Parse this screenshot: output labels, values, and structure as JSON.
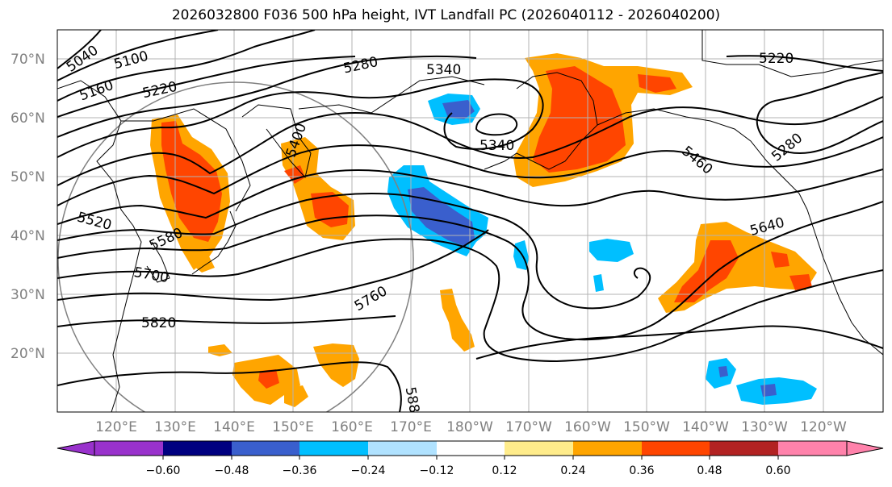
{
  "title": "2026032800 F036 500 hPa height, IVT Landfall PC (2026040112 - 2026040200)",
  "lat_labels": [
    "70°N",
    "60°N",
    "50°N",
    "40°N",
    "30°N",
    "20°N"
  ],
  "lon_labels": [
    "120°E",
    "130°E",
    "140°E",
    "150°E",
    "160°E",
    "170°E",
    "180°W",
    "170°W",
    "160°W",
    "150°W",
    "140°W",
    "130°W",
    "120°W"
  ],
  "contour_labels": [
    "5040",
    "5100",
    "5160",
    "5220",
    "5280",
    "5340",
    "5340",
    "5220",
    "5400",
    "5460",
    "5280",
    "5520",
    "5580",
    "5640",
    "5700",
    "5760",
    "5820",
    "588"
  ],
  "colorbar": {
    "colors": [
      "#9932cc",
      "#000080",
      "#3a5fcd",
      "#00bfff",
      "#b0e2ff",
      "#ffffff",
      "#ffec8b",
      "#ffa500",
      "#ff4500",
      "#b22222",
      "#ff82ab"
    ],
    "tick_labels": [
      "−0.60",
      "−0.48",
      "−0.36",
      "−0.24",
      "−0.12",
      "0.12",
      "0.24",
      "0.36",
      "0.48",
      "0.60"
    ]
  },
  "shading_colors": {
    "pos_light": "#ffec8b",
    "pos_mid": "#ffa500",
    "pos_high": "#ff4500",
    "neg_light": "#00bfff",
    "neg_mid": "#3a5fcd"
  }
}
